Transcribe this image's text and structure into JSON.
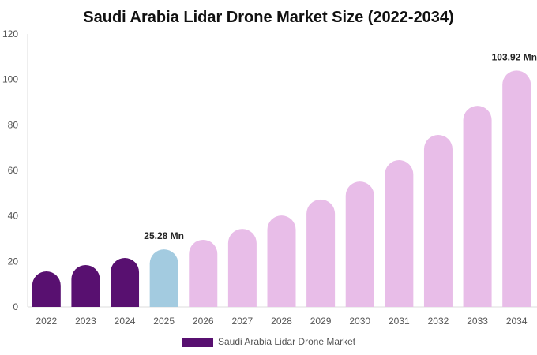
{
  "chart_data": {
    "type": "bar",
    "title": "Saudi Arabia Lidar Drone Market Size (2022-2034)",
    "categories": [
      "2022",
      "2023",
      "2024",
      "2025",
      "2026",
      "2027",
      "2028",
      "2029",
      "2030",
      "2031",
      "2032",
      "2033",
      "2034"
    ],
    "series": [
      {
        "name": "Saudi Arabia Lidar Drone Market",
        "values": [
          15.6,
          18.4,
          21.5,
          25.28,
          29.5,
          34.3,
          40.2,
          47.2,
          55.1,
          64.5,
          75.6,
          88.4,
          103.92
        ]
      }
    ],
    "data_labels": [
      {
        "category": "2025",
        "text": "25.28 Mn"
      },
      {
        "category": "2034",
        "text": "103.92 Mn"
      }
    ],
    "ylim": [
      0,
      120
    ],
    "yticks": [
      0,
      20,
      40,
      60,
      80,
      100,
      120
    ],
    "xlabel": "",
    "ylabel": "",
    "grid": false,
    "legend_position": "bottom",
    "colors": {
      "historical": "#581070",
      "current": "#a3cbe0",
      "forecast": "#e8bde8"
    }
  }
}
